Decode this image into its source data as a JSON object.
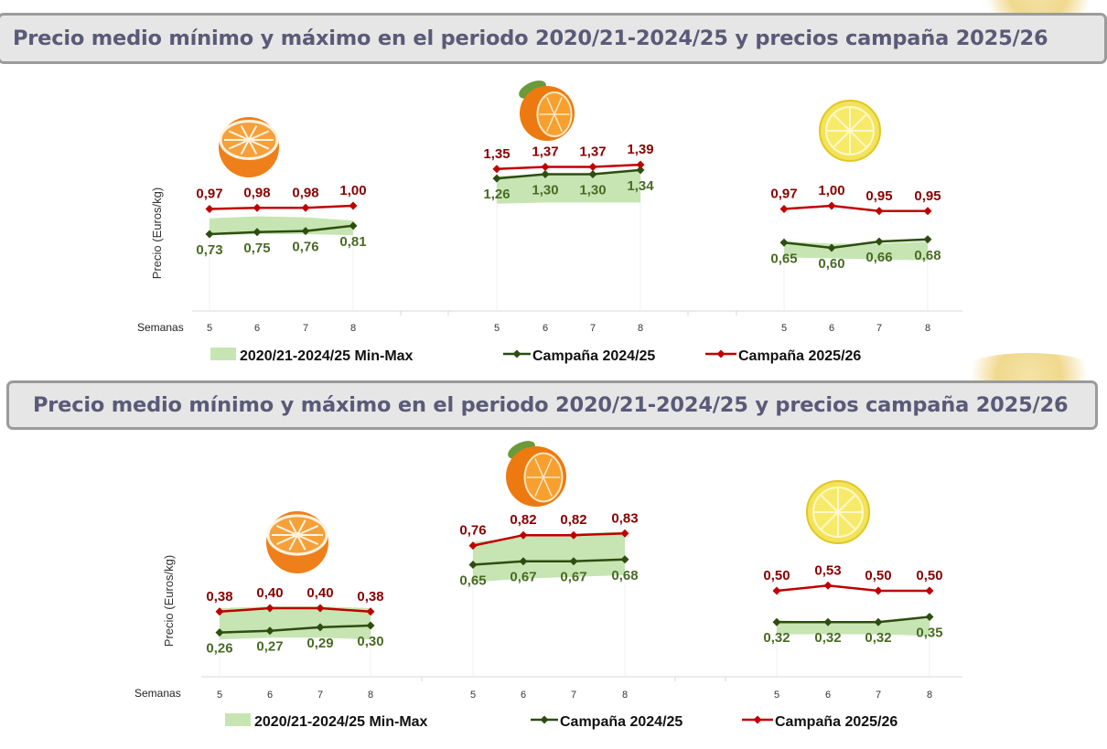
{
  "panels": [
    {
      "header": "Precio medio mínimo y máximo en el periodo 2020/21-2024/25 y precios campaña 2025/26",
      "chart_data": {
        "type": "line",
        "title": "Precio medio mínimo y máximo en el periodo 2020/21-2024/25 y precios campaña 2025/26",
        "ylabel": "Precio (Euros/kg)",
        "xlabel": "Semanas",
        "groups": [
          {
            "fruit": "orange-half-icon",
            "weeks": [
              "5",
              "6",
              "7",
              "8"
            ],
            "range_min": [
              0.72,
              0.73,
              0.73,
              0.72
            ],
            "range_max": [
              0.88,
              0.9,
              0.89,
              0.86
            ],
            "c2425": [
              0.73,
              0.75,
              0.76,
              0.81
            ],
            "c2425_labels": [
              "0,73",
              "0,75",
              "0,76",
              "0,81"
            ],
            "c2526": [
              0.97,
              0.98,
              0.98,
              1.0
            ],
            "c2526_labels": [
              "0,97",
              "0,98",
              "0,98",
              "1,00"
            ]
          },
          {
            "fruit": "orange-whole-icon",
            "weeks": [
              "5",
              "6",
              "7",
              "8"
            ],
            "range_min": [
              1.02,
              1.03,
              1.03,
              1.03
            ],
            "range_max": [
              1.28,
              1.3,
              1.31,
              1.33
            ],
            "c2425": [
              1.26,
              1.3,
              1.3,
              1.34
            ],
            "c2425_labels": [
              "1,26",
              "1,30",
              "1,30",
              "1,34"
            ],
            "c2526": [
              1.35,
              1.37,
              1.37,
              1.39
            ],
            "c2526_labels": [
              "1,35",
              "1,37",
              "1,37",
              "1,39"
            ]
          },
          {
            "fruit": "lemon-icon",
            "weeks": [
              "5",
              "6",
              "7",
              "8"
            ],
            "range_min": [
              0.51,
              0.5,
              0.49,
              0.48
            ],
            "range_max": [
              0.66,
              0.64,
              0.64,
              0.66
            ],
            "c2425": [
              0.65,
              0.6,
              0.66,
              0.68
            ],
            "c2425_labels": [
              "0,65",
              "0,60",
              "0,66",
              "0,68"
            ],
            "c2526": [
              0.97,
              1.0,
              0.95,
              0.95
            ],
            "c2526_labels": [
              "0,97",
              "1,00",
              "0,95",
              "0,95"
            ]
          }
        ],
        "legend": [
          "2020/21-2024/25 Min-Max",
          "Campaña 2024/25",
          "Campaña 2025/26"
        ],
        "colors": {
          "range": "#c6e5b3",
          "c2425": "#2e4d10",
          "c2526": "#c00000",
          "label2425": "#4a6b25",
          "label2526": "#8b0000"
        }
      }
    },
    {
      "header": "Precio medio mínimo y máximo en el periodo 2020/21-2024/25 y precios campaña 2025/26",
      "chart_data": {
        "type": "line",
        "title": "Precio medio mínimo y máximo en el periodo 2020/21-2024/25 y precios campaña 2025/26",
        "ylabel": "Precio (Euros/kg)",
        "xlabel": "Semanas",
        "groups": [
          {
            "fruit": "orange-half-icon",
            "weeks": [
              "5",
              "6",
              "7",
              "8"
            ],
            "range_min": [
              0.22,
              0.23,
              0.23,
              0.22
            ],
            "range_max": [
              0.4,
              0.41,
              0.41,
              0.4
            ],
            "c2425": [
              0.26,
              0.27,
              0.29,
              0.3
            ],
            "c2425_labels": [
              "0,26",
              "0,27",
              "0,29",
              "0,30"
            ],
            "c2526": [
              0.38,
              0.4,
              0.4,
              0.38
            ],
            "c2526_labels": [
              "0,38",
              "0,40",
              "0,40",
              "0,38"
            ]
          },
          {
            "fruit": "orange-whole-icon",
            "weeks": [
              "5",
              "6",
              "7",
              "8"
            ],
            "range_min": [
              0.55,
              0.57,
              0.58,
              0.59
            ],
            "range_max": [
              0.78,
              0.81,
              0.83,
              0.84
            ],
            "c2425": [
              0.65,
              0.67,
              0.67,
              0.68
            ],
            "c2425_labels": [
              "0,65",
              "0,67",
              "0,67",
              "0,68"
            ],
            "c2526": [
              0.76,
              0.82,
              0.82,
              0.83
            ],
            "c2526_labels": [
              "0,76",
              "0,82",
              "0,82",
              "0,83"
            ]
          },
          {
            "fruit": "lemon-icon",
            "weeks": [
              "5",
              "6",
              "7",
              "8"
            ],
            "range_min": [
              0.25,
              0.25,
              0.25,
              0.24
            ],
            "range_max": [
              0.33,
              0.32,
              0.32,
              0.34
            ],
            "c2425": [
              0.32,
              0.32,
              0.32,
              0.35
            ],
            "c2425_labels": [
              "0,32",
              "0,32",
              "0,32",
              "0,35"
            ],
            "c2526": [
              0.5,
              0.53,
              0.5,
              0.5
            ],
            "c2526_labels": [
              "0,50",
              "0,53",
              "0,50",
              "0,50"
            ]
          }
        ],
        "legend": [
          "2020/21-2024/25 Min-Max",
          "Campaña 2024/25",
          "Campaña 2025/26"
        ],
        "colors": {
          "range": "#c6e5b3",
          "c2425": "#2e4d10",
          "c2526": "#c00000",
          "label2425": "#4a6b25",
          "label2526": "#8b0000"
        }
      }
    }
  ]
}
